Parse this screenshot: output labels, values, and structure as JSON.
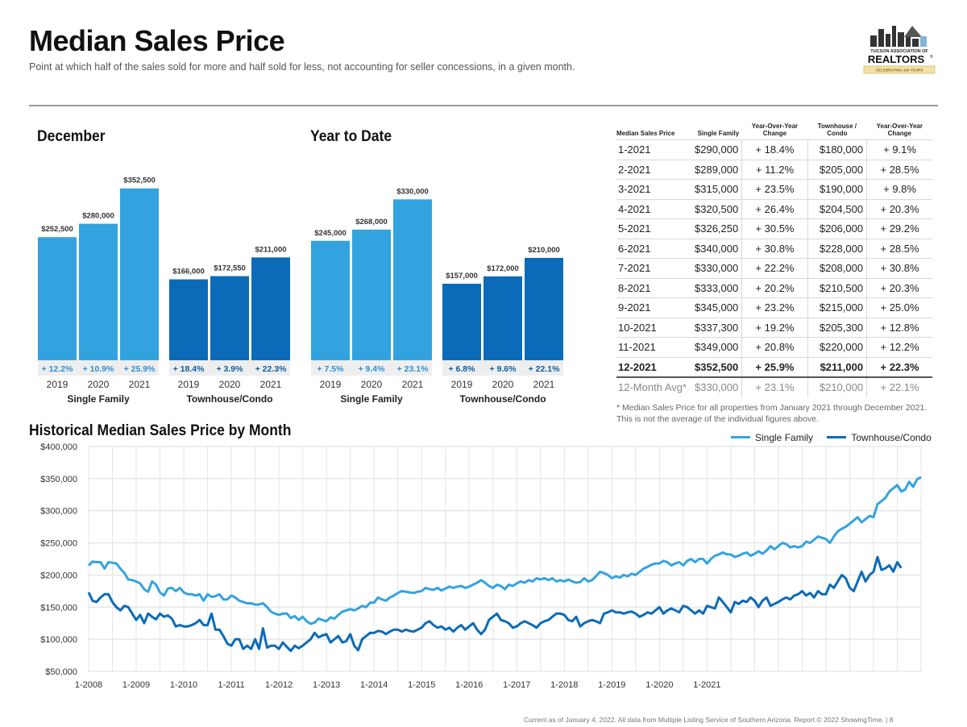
{
  "header": {
    "title": "Median Sales Price",
    "subtitle": "Point at which half of the sales sold for more and half sold for less, not accounting for seller concessions, in a given month."
  },
  "logo": {
    "line1": "TUCSON ASSOCIATION OF",
    "line2": "REALTORS",
    "reg": "®",
    "line3": "CELEBRATING 100 YEARS"
  },
  "colors": {
    "single_family": "#33a3e0",
    "townhouse": "#0b6bb8",
    "sf_pct_text": "#2d8fd6",
    "th_pct_text": "#0b5ea8"
  },
  "chart_data": [
    {
      "type": "bar",
      "title": "December",
      "groups": [
        {
          "name": "Single Family",
          "categories": [
            "2019",
            "2020",
            "2021"
          ],
          "values": [
            252500,
            280000,
            352500
          ],
          "labels": [
            "$252,500",
            "$280,000",
            "$352,500"
          ],
          "changes": [
            "+ 12.2%",
            "+ 10.9%",
            "+ 25.9%"
          ]
        },
        {
          "name": "Townhouse/Condo",
          "categories": [
            "2019",
            "2020",
            "2021"
          ],
          "values": [
            166000,
            172550,
            211000
          ],
          "labels": [
            "$166,000",
            "$172,550",
            "$211,000"
          ],
          "changes": [
            "+ 18.4%",
            "+ 3.9%",
            "+ 22.3%"
          ]
        }
      ]
    },
    {
      "type": "bar",
      "title": "Year to Date",
      "groups": [
        {
          "name": "Single Family",
          "categories": [
            "2019",
            "2020",
            "2021"
          ],
          "values": [
            245000,
            268000,
            330000
          ],
          "labels": [
            "$245,000",
            "$268,000",
            "$330,000"
          ],
          "changes": [
            "+ 7.5%",
            "+ 9.4%",
            "+ 23.1%"
          ]
        },
        {
          "name": "Townhouse/Condo",
          "categories": [
            "2019",
            "2020",
            "2021"
          ],
          "values": [
            157000,
            172000,
            210000
          ],
          "labels": [
            "$157,000",
            "$172,000",
            "$210,000"
          ],
          "changes": [
            "+ 6.8%",
            "+ 9.6%",
            "+ 22.1%"
          ]
        }
      ]
    },
    {
      "type": "table",
      "headers": [
        "Median Sales Price",
        "Single Family",
        "Year-Over-Year Change",
        "Townhouse / Condo",
        "Year-Over-Year Change"
      ],
      "rows": [
        [
          "1-2021",
          "$290,000",
          "+ 18.4%",
          "$180,000",
          "+ 9.1%"
        ],
        [
          "2-2021",
          "$289,000",
          "+ 11.2%",
          "$205,000",
          "+ 28.5%"
        ],
        [
          "3-2021",
          "$315,000",
          "+ 23.5%",
          "$190,000",
          "+ 9.8%"
        ],
        [
          "4-2021",
          "$320,500",
          "+ 26.4%",
          "$204,500",
          "+ 20.3%"
        ],
        [
          "5-2021",
          "$326,250",
          "+ 30.5%",
          "$206,000",
          "+ 29.2%"
        ],
        [
          "6-2021",
          "$340,000",
          "+ 30.8%",
          "$228,000",
          "+ 28.5%"
        ],
        [
          "7-2021",
          "$330,000",
          "+ 22.2%",
          "$208,000",
          "+ 30.8%"
        ],
        [
          "8-2021",
          "$333,000",
          "+ 20.2%",
          "$210,500",
          "+ 20.3%"
        ],
        [
          "9-2021",
          "$345,000",
          "+ 23.2%",
          "$215,000",
          "+ 25.0%"
        ],
        [
          "10-2021",
          "$337,300",
          "+ 19.2%",
          "$205,300",
          "+ 12.8%"
        ],
        [
          "11-2021",
          "$349,000",
          "+ 20.8%",
          "$220,000",
          "+ 12.2%"
        ],
        [
          "12-2021",
          "$352,500",
          "+ 25.9%",
          "$211,000",
          "+ 22.3%"
        ]
      ],
      "avg_row": [
        "12-Month Avg*",
        "$330,000",
        "+ 23.1%",
        "$210,000",
        "+ 22.1%"
      ],
      "footnote": "* Median Sales Price for all properties from January 2021 through December 2021. This is not the average of the individual figures above."
    },
    {
      "type": "line",
      "title": "Historical Median Sales Price by Month",
      "x_start": "1-2008",
      "x_end": "12-2021",
      "x_ticks": [
        "1-2008",
        "1-2009",
        "1-2010",
        "1-2011",
        "1-2012",
        "1-2013",
        "1-2014",
        "1-2015",
        "1-2016",
        "1-2017",
        "1-2018",
        "1-2019",
        "1-2020",
        "1-2021"
      ],
      "ylim": [
        50000,
        400000
      ],
      "y_ticks": [
        50000,
        100000,
        150000,
        200000,
        250000,
        300000,
        350000,
        400000
      ],
      "y_tick_labels": [
        "$50,000",
        "$100,000",
        "$150,000",
        "$200,000",
        "$250,000",
        "$300,000",
        "$350,000",
        "$400,000"
      ],
      "grid": true,
      "legend": "top-right",
      "series": [
        {
          "name": "Single Family",
          "values": [
            215000,
            221000,
            220000,
            220000,
            210000,
            220000,
            219000,
            218000,
            210000,
            203000,
            193000,
            192000,
            190000,
            187000,
            178000,
            174000,
            190000,
            185000,
            173000,
            168000,
            179000,
            180000,
            175000,
            180000,
            173000,
            170000,
            170000,
            168000,
            170000,
            160000,
            170000,
            166000,
            167000,
            170000,
            162000,
            162000,
            168000,
            165000,
            160000,
            158000,
            156000,
            156000,
            154000,
            154000,
            156000,
            150000,
            143000,
            140000,
            138000,
            140000,
            140000,
            133000,
            136000,
            130000,
            135000,
            128000,
            124000,
            126000,
            132000,
            130000,
            128000,
            134000,
            132000,
            138000,
            143000,
            145000,
            147000,
            145000,
            148000,
            152000,
            150000,
            157000,
            157000,
            165000,
            162000,
            160000,
            165000,
            168000,
            172000,
            175000,
            174000,
            173000,
            172000,
            174000,
            175000,
            180000,
            178000,
            177000,
            180000,
            176000,
            179000,
            182000,
            180000,
            182000,
            183000,
            180000,
            182000,
            185000,
            188000,
            192000,
            188000,
            183000,
            180000,
            185000,
            183000,
            178000,
            185000,
            183000,
            187000,
            190000,
            188000,
            192000,
            190000,
            195000,
            193000,
            195000,
            192000,
            195000,
            190000,
            192000,
            190000,
            193000,
            190000,
            188000,
            189000,
            195000,
            190000,
            192000,
            198000,
            205000,
            203000,
            200000,
            195000,
            198000,
            196000,
            200000,
            198000,
            202000,
            200000,
            205000,
            210000,
            213000,
            216000,
            218000,
            218000,
            222000,
            220000,
            215000,
            218000,
            220000,
            215000,
            222000,
            225000,
            220000,
            225000,
            225000,
            218000,
            225000,
            230000,
            232000,
            235000,
            232000,
            232000,
            228000,
            230000,
            233000,
            235000,
            230000,
            233000,
            237000,
            233000,
            238000,
            245000,
            240000,
            245000,
            250000,
            248000,
            243000,
            245000,
            243000,
            245000,
            252000,
            250000,
            255000,
            260000,
            258000,
            256000,
            250000,
            260000,
            268000,
            272000,
            275000,
            280000,
            285000,
            290000,
            282000,
            287000,
            292000,
            290000,
            310000,
            315000,
            320000,
            330000,
            335000,
            340000,
            330000,
            333000,
            345000,
            337300,
            349000,
            352500
          ]
        },
        {
          "name": "Townhouse/Condo",
          "values": [
            173000,
            160000,
            158000,
            165000,
            170000,
            170000,
            158000,
            150000,
            145000,
            152000,
            150000,
            140000,
            130000,
            138000,
            125000,
            140000,
            135000,
            131000,
            140000,
            135000,
            137000,
            132000,
            120000,
            122000,
            120000,
            120000,
            122000,
            125000,
            130000,
            122000,
            122000,
            140000,
            115000,
            115000,
            105000,
            93000,
            90000,
            100000,
            100000,
            85000,
            90000,
            85000,
            100000,
            85000,
            117000,
            87000,
            90000,
            90000,
            85000,
            95000,
            88000,
            82000,
            90000,
            86000,
            90000,
            95000,
            100000,
            110000,
            103000,
            106000,
            108000,
            95000,
            100000,
            105000,
            95000,
            97000,
            108000,
            90000,
            83000,
            100000,
            105000,
            110000,
            110000,
            113000,
            112000,
            108000,
            112000,
            115000,
            115000,
            112000,
            115000,
            113000,
            112000,
            115000,
            118000,
            125000,
            128000,
            122000,
            118000,
            120000,
            115000,
            118000,
            112000,
            118000,
            122000,
            115000,
            120000,
            125000,
            115000,
            108000,
            115000,
            130000,
            135000,
            140000,
            130000,
            128000,
            125000,
            118000,
            120000,
            125000,
            128000,
            125000,
            122000,
            118000,
            125000,
            128000,
            130000,
            135000,
            140000,
            140000,
            138000,
            130000,
            128000,
            135000,
            120000,
            125000,
            128000,
            130000,
            128000,
            125000,
            140000,
            142000,
            145000,
            142000,
            142000,
            140000,
            142000,
            143000,
            140000,
            135000,
            138000,
            142000,
            140000,
            145000,
            150000,
            140000,
            145000,
            148000,
            145000,
            142000,
            152000,
            150000,
            145000,
            140000,
            145000,
            140000,
            152000,
            150000,
            148000,
            165000,
            158000,
            150000,
            142000,
            158000,
            155000,
            160000,
            158000,
            165000,
            160000,
            150000,
            160000,
            165000,
            152000,
            155000,
            158000,
            162000,
            165000,
            162000,
            168000,
            170000,
            175000,
            168000,
            172000,
            165000,
            175000,
            170000,
            170000,
            185000,
            180000,
            190000,
            200000,
            195000,
            180000,
            175000,
            190000,
            205000,
            190000,
            200000,
            205000,
            228000,
            208000,
            210500,
            215000,
            205300,
            220000,
            211000
          ]
        }
      ]
    }
  ],
  "footer": {
    "text": "Current as of January 4, 2022. All data from Multiple Listing Service of Southern Arizona. Report © 2022 ShowingTime.  |  8"
  }
}
